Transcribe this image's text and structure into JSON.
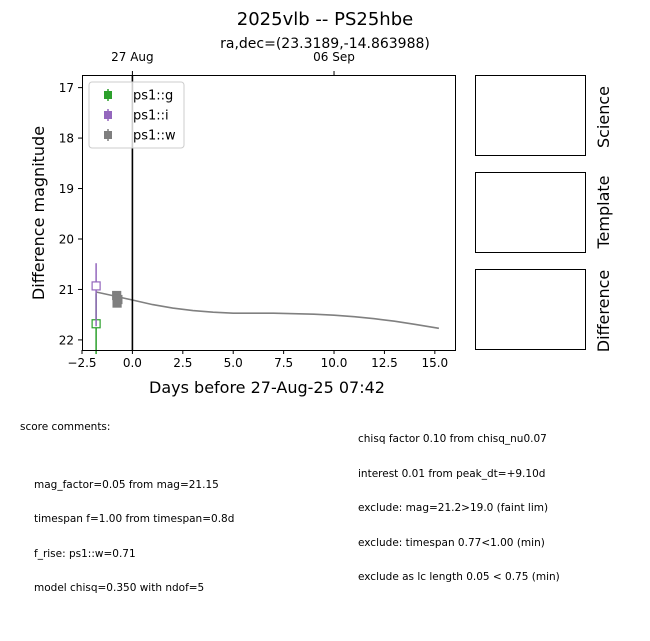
{
  "figure": {
    "title": "2025vlb -- PS25hbe",
    "subtitle": "ra,dec=(23.3189,-14.863988)"
  },
  "chart_data": {
    "type": "scatter",
    "xlabel": "Days before 27-Aug-25 07:42",
    "ylabel": "Difference magnitude",
    "xlim": [
      -2.5,
      16.0
    ],
    "ylim": [
      22.2,
      16.75
    ],
    "y_inverted": true,
    "x_ticks": [
      -2.5,
      0.0,
      2.5,
      5.0,
      7.5,
      10.0,
      12.5,
      15.0
    ],
    "x_tick_labels": [
      "−2.5",
      "0.0",
      "2.5",
      "5.0",
      "7.5",
      "10.0",
      "12.5",
      "15.0"
    ],
    "y_ticks": [
      17,
      18,
      19,
      20,
      21,
      22
    ],
    "y_tick_labels": [
      "17",
      "18",
      "19",
      "20",
      "21",
      "22"
    ],
    "top_axis_ticks": [
      {
        "x": 0.0,
        "label": "27 Aug"
      },
      {
        "x": 10.0,
        "label": "06 Sep"
      }
    ],
    "legend": {
      "position": "top-left",
      "entries": [
        {
          "label": "ps1::g",
          "color": "#2ca02c",
          "marker": "square"
        },
        {
          "label": "ps1::i",
          "color": "#9467bd",
          "marker": "square"
        },
        {
          "label": "ps1::w",
          "color": "#7f7f7f",
          "marker": "square"
        }
      ]
    },
    "series": [
      {
        "name": "ps1::g",
        "color": "#2ca02c",
        "marker": "open-square",
        "points": [
          {
            "x": -1.8,
            "y": 21.68,
            "yerr_low": 0.6,
            "yerr_high": 0.6
          }
        ]
      },
      {
        "name": "ps1::i",
        "color": "#9467bd",
        "marker": "open-square",
        "points": [
          {
            "x": -1.8,
            "y": 20.93,
            "yerr_low": 0.45,
            "yerr_high": 0.8
          }
        ]
      },
      {
        "name": "ps1::w",
        "color": "#7f7f7f",
        "marker": "filled-square",
        "points": [
          {
            "x": -0.78,
            "y": 21.12,
            "yerr_low": 0.08,
            "yerr_high": 0.08
          },
          {
            "x": -0.72,
            "y": 21.2,
            "yerr_low": 0.1,
            "yerr_high": 0.1
          },
          {
            "x": -0.76,
            "y": 21.27,
            "yerr_low": 0.08,
            "yerr_high": 0.08
          }
        ]
      }
    ],
    "model_curve": {
      "color": "#808080",
      "points": [
        [
          -1.8,
          21.05
        ],
        [
          -1.0,
          21.12
        ],
        [
          0.0,
          21.21
        ],
        [
          1.0,
          21.3
        ],
        [
          2.0,
          21.37
        ],
        [
          3.0,
          21.42
        ],
        [
          4.0,
          21.45
        ],
        [
          5.0,
          21.47
        ],
        [
          6.0,
          21.47
        ],
        [
          7.0,
          21.47
        ],
        [
          8.0,
          21.48
        ],
        [
          9.0,
          21.49
        ],
        [
          10.0,
          21.51
        ],
        [
          11.0,
          21.54
        ],
        [
          12.0,
          21.58
        ],
        [
          13.0,
          21.63
        ],
        [
          14.0,
          21.69
        ],
        [
          15.2,
          21.77
        ]
      ]
    },
    "vertical_line_x": 0.0
  },
  "cutouts": [
    {
      "label": "Science"
    },
    {
      "label": "Template"
    },
    {
      "label": "Difference"
    }
  ],
  "comments": {
    "header": "score comments:",
    "left": [
      "mag_factor=0.05 from mag=21.15",
      "timespan f=1.00 from timespan=0.8d",
      "f_rise: ps1::w=0.71",
      "model chisq=0.350 with ndof=5"
    ],
    "right": [
      "chisq factor 0.10 from chisq_nu0.07",
      "interest 0.01 from peak_dt=+9.10d",
      "exclude: mag=21.2>19.0 (faint lim)",
      "exclude: timespan 0.77<1.00 (min)",
      "exclude as lc length 0.05 < 0.75 (min)"
    ]
  }
}
